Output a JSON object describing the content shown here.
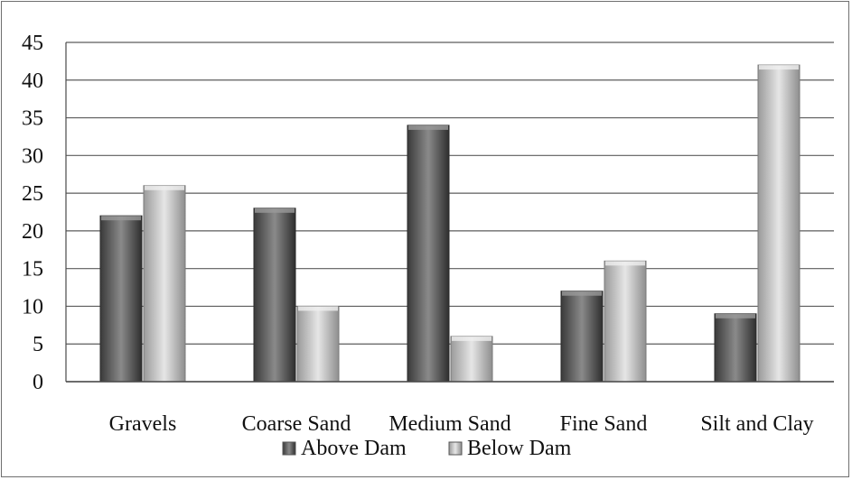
{
  "chart_data": {
    "type": "bar",
    "categories": [
      "Gravels",
      "Coarse Sand",
      "Medium Sand",
      "Fine Sand",
      "Silt and Clay"
    ],
    "series": [
      {
        "name": "Above Dam",
        "values": [
          22,
          23,
          34,
          12,
          9
        ],
        "color": "#5a5a5a"
      },
      {
        "name": "Below Dam",
        "values": [
          26,
          10,
          6,
          16,
          42
        ],
        "color": "#bdbdbd"
      }
    ],
    "ylim": [
      0,
      45
    ],
    "yticks": [
      0,
      5,
      10,
      15,
      20,
      25,
      30,
      35,
      40,
      45
    ],
    "ytick_labels": [
      "0",
      "5",
      "10",
      "15",
      "20",
      "25",
      "30",
      "35",
      "40",
      "45"
    ],
    "grid": true,
    "legend_position": "bottom",
    "title": "",
    "xlabel": "",
    "ylabel": ""
  }
}
